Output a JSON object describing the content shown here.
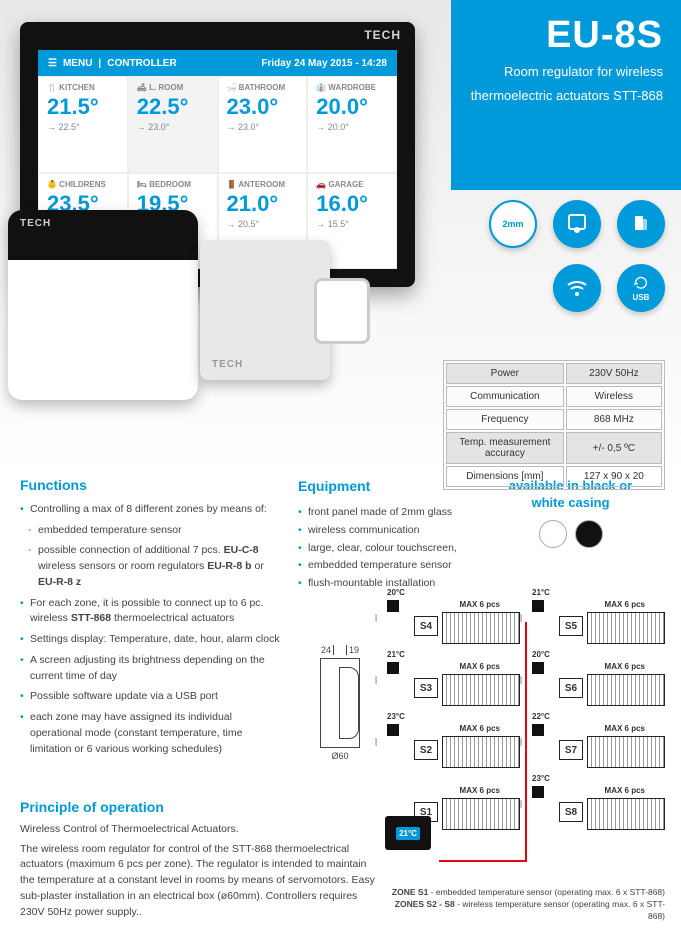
{
  "hero": {
    "model": "EU-8S",
    "sub1": "Room regulator for wireless",
    "sub2": "thermoelectric actuators STT-868",
    "ctrl_logo": "TECH",
    "menu": "MENU",
    "pipe": "|",
    "ctl": "CONTROLLER",
    "date": "Friday 24 May 2015 - 14:28",
    "rooms": [
      {
        "n": "KITCHEN",
        "t": "21.5°",
        "g": "→ 22.5°"
      },
      {
        "n": "L. ROOM",
        "t": "22.5°",
        "g": "→ 23.0°",
        "sel": true
      },
      {
        "n": "BATHROOM",
        "t": "23.0°",
        "g": "→ 23.0°"
      },
      {
        "n": "WARDROBE",
        "t": "20.0°",
        "g": "→ 20.0°"
      },
      {
        "n": "CHILDRENS",
        "t": "23.5°",
        "g": ""
      },
      {
        "n": "BEDROOM",
        "t": "19.5°",
        "g": ""
      },
      {
        "n": "ANTEROOM",
        "t": "21.0°",
        "g": "→ 20.5°"
      },
      {
        "n": "GARAGE",
        "t": "16.0°",
        "g": "→ 15.5°"
      }
    ],
    "wbox_logo": "TECH",
    "act_logo": "TECH",
    "icons": {
      "mm": "2mm",
      "usb": "USB"
    }
  },
  "spec": [
    {
      "k": "Power",
      "v": "230V 50Hz",
      "a": true
    },
    {
      "k": "Communication",
      "v": "Wireless"
    },
    {
      "k": "Frequency",
      "v": "868 MHz"
    },
    {
      "k": "Temp. measurement accuracy",
      "v": "+/- 0,5 ºC",
      "a": true
    },
    {
      "k": "Dimensions [mm]",
      "v": "127 x 90 x 20"
    }
  ],
  "functions": {
    "title": "Functions",
    "items": [
      "Controlling a max of 8 different zones by means of:",
      {
        "sub": "embedded temperature sensor"
      },
      {
        "sub": "possible connection of additional 7 pcs. <b>EU-C-8</b> wireless sensors or room regulators <b>EU-R-8 b</b> or <b>EU-R-8 z</b>"
      },
      "For each zone, it is possible to connect up to 6 pc. wireless <b>STT-868</b> thermoelectrical actuators",
      "Settings display: Temperature, date, hour, alarm clock",
      "A screen adjusting its brightness depending on the current time of day",
      "Possible software update via a USB port",
      "each zone may have assigned its individual operational mode (constant temperature, time limitation or 6 various working schedules)"
    ]
  },
  "equipment": {
    "title": "Equipment",
    "items": [
      "front panel made of 2mm glass",
      "wireless communication",
      "large, clear, colour touchscreen,",
      "embedded temperature sensor",
      "flush-mountable installation"
    ]
  },
  "avail": {
    "l1": "available in black or",
    "l2": "white casing",
    "colors": [
      "#ffffff",
      "#111111"
    ]
  },
  "dim": {
    "a": "24",
    "b": "19",
    "c": "Ø60"
  },
  "zones": {
    "max": "MAX 6 pcs",
    "left": [
      {
        "id": "S4",
        "t": "20°C"
      },
      {
        "id": "S3",
        "t": "21°C"
      },
      {
        "id": "S2",
        "t": "23°C"
      },
      {
        "id": "S1",
        "t": ""
      }
    ],
    "right": [
      {
        "id": "S5",
        "t": "21°C"
      },
      {
        "id": "S6",
        "t": "20°C"
      },
      {
        "id": "S7",
        "t": "22°C"
      },
      {
        "id": "S8",
        "t": "23°C"
      }
    ],
    "mini": "21°C",
    "leg1": "<b>ZONE S1</b> - embedded temperature sensor (operating max. 6 x STT-868)",
    "leg2": "<b>ZONES S2 - S8</b> - wireless temperature sensor (operating max. 6 x STT-868)"
  },
  "principle": {
    "title": "Principle of operation",
    "sub": "Wireless Control of Thermoelectrical Actuators.",
    "body": "The wireless room regulator for control of the STT-868 thermoelectrical actuators (maximum 6 pcs per zone). The regulator is intended to maintain the temperature at a constant level in rooms by means of servomotors. Easy sub-plaster installation in an electrical box (ø60mm). Controllers requires 230V 50Hz power supply.."
  }
}
